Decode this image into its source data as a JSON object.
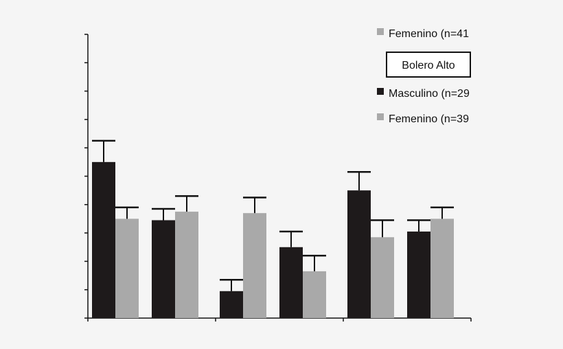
{
  "chart_data": {
    "type": "bar",
    "title": "",
    "xlabel": "",
    "ylabel": "",
    "ylim": [
      0,
      10
    ],
    "y_ticks": 10,
    "grid": false,
    "colors": {
      "masculino": "#1e1a1b",
      "femenino": "#a9a9a9",
      "background": "#f5f5f5",
      "axis": "#111111"
    },
    "groups": [
      {
        "pairs": [
          {
            "series": "Masculino",
            "value": 5.5,
            "error": 0.75
          },
          {
            "series": "Femenino",
            "value": 3.5,
            "error": 0.4
          },
          {
            "series": "Masculino",
            "value": 3.45,
            "error": 0.4
          },
          {
            "series": "Femenino",
            "value": 3.75,
            "error": 0.55
          }
        ]
      },
      {
        "pairs": [
          {
            "series": "Masculino",
            "value": 0.95,
            "error": 0.4
          },
          {
            "series": "Femenino",
            "value": 3.7,
            "error": 0.55
          },
          {
            "series": "Masculino",
            "value": 2.5,
            "error": 0.55
          },
          {
            "series": "Femenino",
            "value": 1.65,
            "error": 0.55
          }
        ]
      },
      {
        "pairs": [
          {
            "series": "Masculino",
            "value": 4.5,
            "error": 0.65
          },
          {
            "series": "Femenino",
            "value": 2.85,
            "error": 0.6
          },
          {
            "series": "Masculino",
            "value": 3.05,
            "error": 0.4
          },
          {
            "series": "Femenino",
            "value": 3.5,
            "error": 0.4
          }
        ]
      }
    ],
    "legend": {
      "placement": "top-right",
      "top_entry": {
        "label": "Femenino (n=41",
        "series": "Femenino"
      },
      "section_title": "Bolero Alto",
      "entries": [
        {
          "label": "Masculino (n=29",
          "series": "Masculino"
        },
        {
          "label": "Femenino (n=39",
          "series": "Femenino"
        }
      ]
    }
  }
}
